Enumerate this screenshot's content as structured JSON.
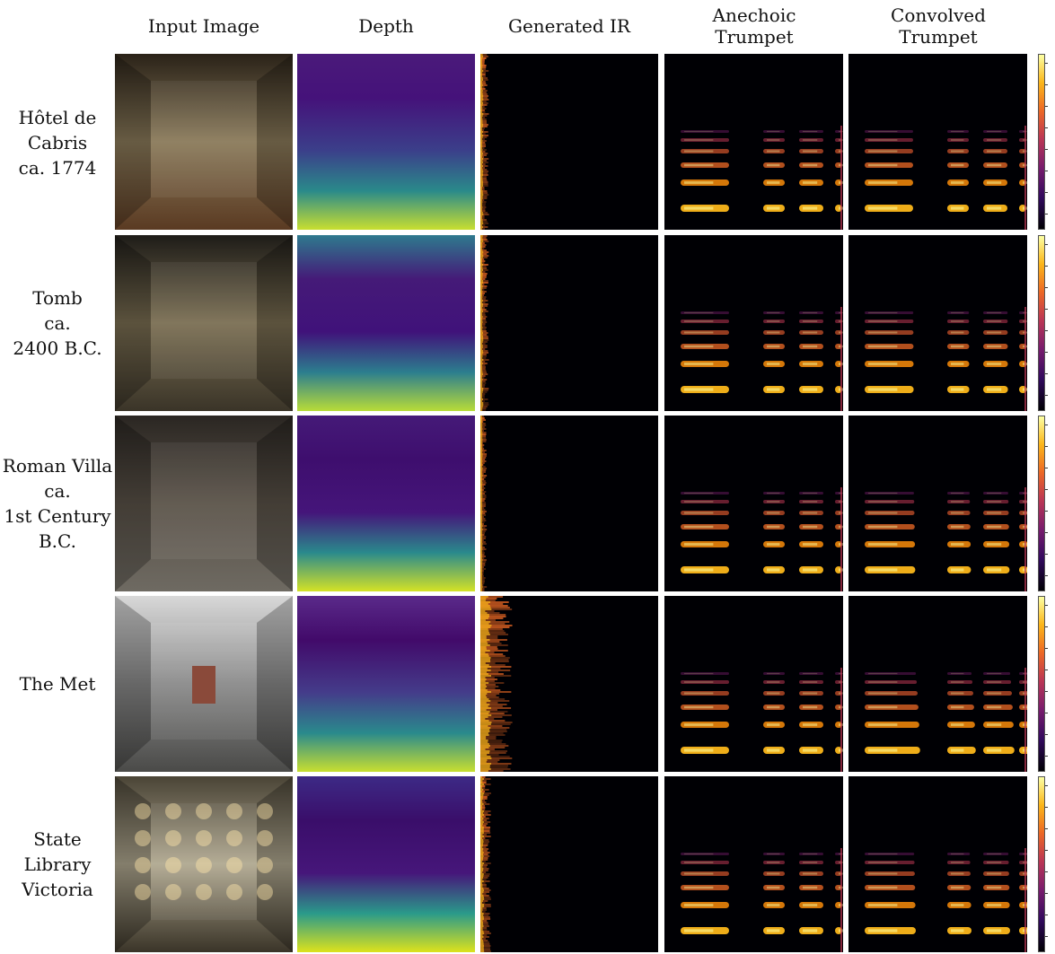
{
  "columns": [
    {
      "key": "input",
      "label": "Input Image"
    },
    {
      "key": "depth",
      "label": "Depth"
    },
    {
      "key": "ir",
      "label": "Generated IR"
    },
    {
      "key": "anechoic",
      "label": "Anechoic\nTrumpet"
    },
    {
      "key": "convolved",
      "label": "Convolved\nTrumpet"
    }
  ],
  "rows": [
    {
      "label": "Hôtel de\nCabris\nca. 1774"
    },
    {
      "label": "Tomb\nca.\n2400 B.C."
    },
    {
      "label": "Roman Villa\nca.\n1st Century\nB.C."
    },
    {
      "label": "The Met"
    },
    {
      "label": "State\nLibrary\nVictoria"
    }
  ],
  "palette": {
    "inferno_dark": "#000004",
    "inferno_purple": "#781c6d",
    "inferno_orange": "#ed6925",
    "inferno_yellow": "#fcffa4",
    "viridis_purple": "#46085c",
    "viridis_teal": "#25868e",
    "viridis_yellow": "#d7e219"
  }
}
